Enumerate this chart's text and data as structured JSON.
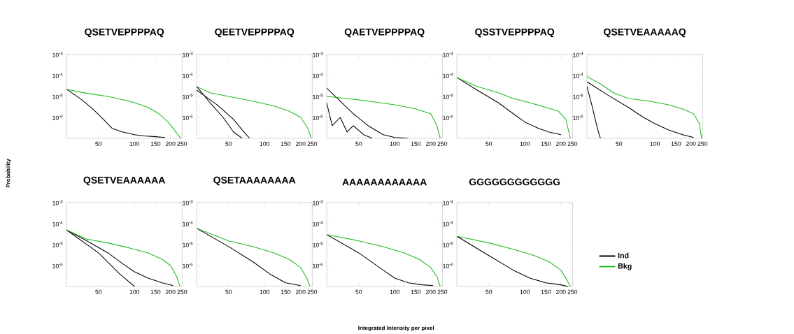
{
  "chart_data": [
    {
      "type": "line",
      "title": "QSETVEPPPPAQ",
      "log": "xy",
      "xlim": [
        27,
        250
      ],
      "ylim": [
        1e-07,
        0.001
      ],
      "xticks": [
        50,
        100,
        150,
        200,
        250
      ],
      "yticks": [
        {
          "value": 0.001,
          "label": "10$^{-3}$"
        },
        {
          "value": 0.0001,
          "label": "10$^{-4}$"
        },
        {
          "value": 1e-05,
          "label": "10$^{-5}$"
        },
        {
          "value": 1e-06,
          "label": "10$^{-6}$"
        }
      ],
      "series": [
        {
          "color": "#000000",
          "x": [
            27,
            35,
            45,
            55,
            65,
            80,
            100,
            120,
            150,
            180
          ],
          "values": [
            2.2e-05,
            8e-06,
            2.5e-06,
            8e-07,
            3e-07,
            2e-07,
            1.5e-07,
            1.3e-07,
            1.2e-07,
            1.1e-07
          ]
        },
        {
          "color": "#22bb22",
          "x": [
            27,
            40,
            60,
            80,
            100,
            130,
            160,
            190,
            210,
            230,
            245
          ],
          "values": [
            2.2e-05,
            1.4e-05,
            1e-05,
            7e-06,
            5e-06,
            3e-06,
            1.5e-06,
            6e-07,
            3e-07,
            1.5e-07,
            1e-07
          ]
        }
      ]
    },
    {
      "type": "line",
      "title": "QEETVEPPPPAQ",
      "log": "xy",
      "xlim": [
        27,
        250
      ],
      "ylim": [
        1e-07,
        0.001
      ],
      "xticks": [
        50,
        100,
        150,
        200,
        250
      ],
      "yticks": [
        {
          "value": 0.001,
          "label": "10$^{-3}$"
        },
        {
          "value": 0.0001,
          "label": "10$^{-4}$"
        },
        {
          "value": 1e-05,
          "label": "10$^{-5}$"
        },
        {
          "value": 1e-06,
          "label": "10$^{-6}$"
        }
      ],
      "series": [
        {
          "color": "#000000",
          "x": [
            27,
            35,
            45,
            55,
            65
          ],
          "values": [
            3e-05,
            5e-06,
            1e-06,
            2e-07,
            1e-07
          ]
        },
        {
          "color": "#000000",
          "x": [
            27,
            40,
            55,
            65,
            75
          ],
          "values": [
            2e-05,
            4e-06,
            8e-07,
            2.5e-07,
            1e-07
          ]
        },
        {
          "color": "#22bb22",
          "x": [
            27,
            35,
            50,
            80,
            120,
            160,
            200,
            230,
            245
          ],
          "values": [
            3e-05,
            1.5e-05,
            1e-05,
            6e-06,
            3.5e-06,
            2e-06,
            1e-06,
            3e-07,
            1e-07
          ]
        }
      ]
    },
    {
      "type": "line",
      "title": "QAETVEPPPPAQ",
      "log": "xy",
      "xlim": [
        27,
        250
      ],
      "ylim": [
        1e-07,
        0.001
      ],
      "xticks": [
        50,
        100,
        150,
        200,
        250
      ],
      "yticks": [
        {
          "value": 0.001,
          "label": "10$^{-3}$"
        },
        {
          "value": 0.0001,
          "label": "10$^{-4}$"
        },
        {
          "value": 1e-05,
          "label": "10$^{-5}$"
        },
        {
          "value": 1e-06,
          "label": "10$^{-6}$"
        }
      ],
      "series": [
        {
          "color": "#000000",
          "x": [
            27,
            35,
            45,
            60,
            80,
            100,
            130
          ],
          "values": [
            2.5e-05,
            6e-06,
            1.5e-06,
            4e-07,
            1.5e-07,
            1.1e-07,
            1e-07
          ]
        },
        {
          "color": "#000000",
          "x": [
            27,
            30,
            35,
            40,
            45,
            55,
            65
          ],
          "values": [
            5e-06,
            4e-07,
            1e-06,
            2e-07,
            4e-07,
            1.5e-07,
            1e-07
          ]
        },
        {
          "color": "#22bb22",
          "x": [
            27,
            40,
            60,
            100,
            150,
            200,
            225,
            240
          ],
          "values": [
            1e-05,
            8e-06,
            6e-06,
            4e-06,
            2.5e-06,
            1.5e-06,
            4e-07,
            1e-07
          ]
        }
      ]
    },
    {
      "type": "line",
      "title": "QSSTVEPPPPAQ",
      "log": "xy",
      "xlim": [
        27,
        250
      ],
      "ylim": [
        1e-07,
        0.001
      ],
      "xticks": [
        50,
        100,
        150,
        200,
        250
      ],
      "yticks": [
        {
          "value": 0.001,
          "label": "10$^{-3}$"
        },
        {
          "value": 0.0001,
          "label": "10$^{-4}$"
        },
        {
          "value": 1e-05,
          "label": "10$^{-5}$"
        },
        {
          "value": 1e-06,
          "label": "10$^{-6}$"
        }
      ],
      "series": [
        {
          "color": "#000000",
          "x": [
            27,
            40,
            60,
            80,
            100,
            130,
            160,
            200
          ],
          "values": [
            8e-05,
            2e-05,
            5e-06,
            1.5e-06,
            6e-07,
            3e-07,
            2e-07,
            1.5e-07
          ]
        },
        {
          "color": "#22bb22",
          "x": [
            27,
            40,
            60,
            80,
            110,
            150,
            190,
            220,
            240
          ],
          "values": [
            8e-05,
            3e-05,
            1.5e-05,
            8e-06,
            5e-06,
            3e-06,
            2e-06,
            8e-07,
            1e-07
          ]
        }
      ]
    },
    {
      "type": "line",
      "title": "QSETVEAAAAAQ",
      "log": "xy",
      "xlim": [
        27,
        250
      ],
      "ylim": [
        1e-07,
        0.001
      ],
      "xticks": [
        50,
        100,
        150,
        200,
        250
      ],
      "yticks": [
        {
          "value": 0.001,
          "label": "10$^{-3}$"
        },
        {
          "value": 0.0001,
          "label": "10$^{-4}$"
        },
        {
          "value": 1e-05,
          "label": "10$^{-5}$"
        },
        {
          "value": 1e-06,
          "label": "10$^{-6}$"
        }
      ],
      "series": [
        {
          "color": "#000000",
          "x": [
            27,
            30,
            33,
            35
          ],
          "values": [
            3e-05,
            3e-06,
            3e-07,
            1e-07
          ]
        },
        {
          "color": "#000000",
          "x": [
            27,
            40,
            60,
            80,
            100,
            130,
            170,
            210
          ],
          "values": [
            5e-05,
            1.2e-05,
            3e-06,
            1e-06,
            5e-07,
            2.5e-07,
            1.5e-07,
            1.1e-07
          ]
        },
        {
          "color": "#22bb22",
          "x": [
            27,
            35,
            45,
            60,
            90,
            130,
            170,
            210,
            235,
            245
          ],
          "values": [
            9e-05,
            4e-05,
            1.5e-05,
            8e-06,
            6e-06,
            4e-06,
            2.5e-06,
            1.5e-06,
            5e-07,
            1e-07
          ]
        }
      ]
    },
    {
      "type": "line",
      "title": "QSETVEAAAAAA",
      "ylabel": "Probability",
      "log": "xy",
      "xlim": [
        27,
        250
      ],
      "ylim": [
        1e-07,
        0.001
      ],
      "xticks": [
        50,
        100,
        150,
        200,
        250
      ],
      "yticks": [
        {
          "value": 0.001,
          "label": "10$^{-3}$"
        },
        {
          "value": 0.0001,
          "label": "10$^{-4}$"
        },
        {
          "value": 1e-05,
          "label": "10$^{-5}$"
        },
        {
          "value": 1e-06,
          "label": "10$^{-6}$"
        }
      ],
      "series": [
        {
          "color": "#000000",
          "x": [
            27,
            40,
            60,
            80,
            100,
            130,
            170,
            210
          ],
          "values": [
            5e-05,
            1.5e-05,
            4e-06,
            1.2e-06,
            5e-07,
            2.5e-07,
            1.5e-07,
            1.1e-07
          ]
        },
        {
          "color": "#000000",
          "x": [
            27,
            50,
            75,
            100
          ],
          "values": [
            5e-05,
            4e-06,
            4e-07,
            1e-07
          ]
        },
        {
          "color": "#22bb22",
          "x": [
            27,
            40,
            60,
            90,
            130,
            170,
            200,
            225,
            240
          ],
          "values": [
            5e-05,
            1.8e-05,
            1.2e-05,
            7e-06,
            4e-06,
            2e-06,
            1e-06,
            3e-07,
            1e-07
          ]
        }
      ]
    },
    {
      "type": "line",
      "title": "QSETAAAAAAAA",
      "log": "xy",
      "xlim": [
        27,
        250
      ],
      "ylim": [
        1e-07,
        0.001
      ],
      "xticks": [
        50,
        100,
        150,
        200,
        250
      ],
      "yticks": [
        {
          "value": 0.001,
          "label": "10$^{-3}$"
        },
        {
          "value": 0.0001,
          "label": "10$^{-4}$"
        },
        {
          "value": 1e-05,
          "label": "10$^{-5}$"
        },
        {
          "value": 1e-06,
          "label": "10$^{-6}$"
        }
      ],
      "series": [
        {
          "color": "#000000",
          "x": [
            27,
            50,
            80,
            110,
            150,
            200
          ],
          "values": [
            6e-05,
            8e-06,
            1.5e-06,
            4e-07,
            1.5e-07,
            1.1e-07
          ]
        },
        {
          "color": "#22bb22",
          "x": [
            27,
            50,
            80,
            120,
            160,
            200,
            225,
            240
          ],
          "values": [
            6e-05,
            1.5e-05,
            8e-06,
            4e-06,
            2e-06,
            8e-07,
            2.5e-07,
            1e-07
          ]
        }
      ]
    },
    {
      "type": "line",
      "title": "AAAAAAAAAAAA",
      "xlabel": "Integrated Intensity per pixel",
      "log": "xy",
      "xlim": [
        27,
        250
      ],
      "ylim": [
        1e-07,
        0.001
      ],
      "xticks": [
        50,
        100,
        150,
        200,
        250
      ],
      "yticks": [
        {
          "value": 0.001,
          "label": "10$^{-3}$"
        },
        {
          "value": 0.0001,
          "label": "10$^{-4}$"
        },
        {
          "value": 1e-05,
          "label": "10$^{-5}$"
        },
        {
          "value": 1e-06,
          "label": "10$^{-6}$"
        }
      ],
      "series": [
        {
          "color": "#000000",
          "x": [
            27,
            50,
            80,
            100,
            130,
            170,
            210
          ],
          "values": [
            3e-05,
            4e-06,
            6e-07,
            2.5e-07,
            1.5e-07,
            1.2e-07,
            1.1e-07
          ]
        },
        {
          "color": "#22bb22",
          "x": [
            27,
            50,
            80,
            120,
            160,
            200,
            225,
            240
          ],
          "values": [
            3e-05,
            1.5e-05,
            8e-06,
            4e-06,
            2e-06,
            8e-07,
            3e-07,
            1e-07
          ]
        }
      ]
    },
    {
      "type": "line",
      "title": "GGGGGGGGGGGG",
      "legend": "right",
      "log": "xy",
      "xlim": [
        27,
        250
      ],
      "ylim": [
        1e-07,
        0.001
      ],
      "xticks": [
        50,
        100,
        150,
        200,
        250
      ],
      "yticks": [
        {
          "value": 0.001,
          "label": "10$^{-3}$"
        },
        {
          "value": 0.0001,
          "label": "10$^{-4}$"
        },
        {
          "value": 1e-05,
          "label": "10$^{-5}$"
        },
        {
          "value": 1e-06,
          "label": "10$^{-6}$"
        }
      ],
      "series": [
        {
          "name": "Ind",
          "color": "#000000",
          "x": [
            27,
            50,
            80,
            110,
            150,
            200,
            230
          ],
          "values": [
            2.5e-05,
            3e-06,
            6e-07,
            2.5e-07,
            1.5e-07,
            1.2e-07,
            1e-07
          ]
        },
        {
          "name": "Bkg",
          "color": "#22bb22",
          "x": [
            27,
            50,
            80,
            120,
            160,
            200,
            225,
            240
          ],
          "values": [
            2.5e-05,
            1.2e-05,
            6e-06,
            3e-06,
            1.5e-06,
            6e-07,
            2e-07,
            1e-07
          ]
        }
      ]
    }
  ]
}
